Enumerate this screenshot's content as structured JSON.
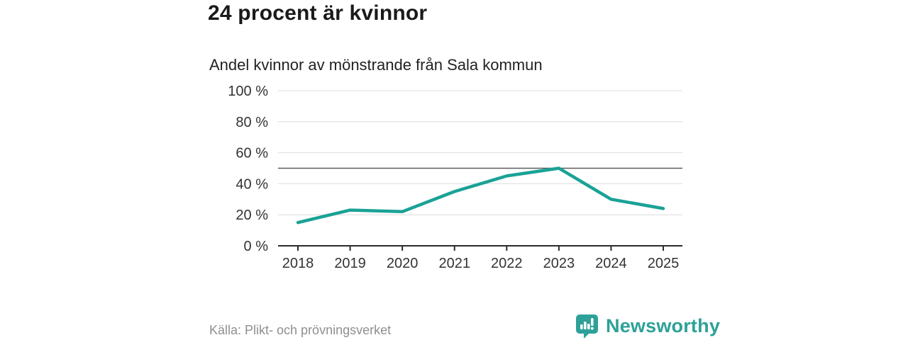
{
  "header": {
    "title": "24 procent är kvinnor",
    "subtitle": "Andel kvinnor av mönstrande från Sala kommun"
  },
  "chart_data": {
    "type": "line",
    "title": "Andel kvinnor av mönstrande från Sala kommun",
    "categories": [
      "2018",
      "2019",
      "2020",
      "2021",
      "2022",
      "2023",
      "2024",
      "2025"
    ],
    "series": [
      {
        "name": "Andel kvinnor av mönstrande",
        "values": [
          15,
          23,
          22,
          35,
          45,
          50,
          30,
          24
        ]
      }
    ],
    "xlabel": "",
    "ylabel": "",
    "ylim": [
      0,
      100
    ],
    "yticks": [
      0,
      20,
      40,
      60,
      80,
      100
    ],
    "ytick_suffix": " %",
    "reference_line": 50,
    "grid": true,
    "legend": "none",
    "colors": {
      "line": "#1aa296",
      "grid": "#dcdcdc",
      "reference_line": "#5a5a5a",
      "axis": "#2b2b2b",
      "tick_label": "#333333"
    }
  },
  "footer": {
    "source": "Källa: Plikt- och prövningsverket",
    "brand": "Newsworthy",
    "brand_color": "#2da199"
  }
}
